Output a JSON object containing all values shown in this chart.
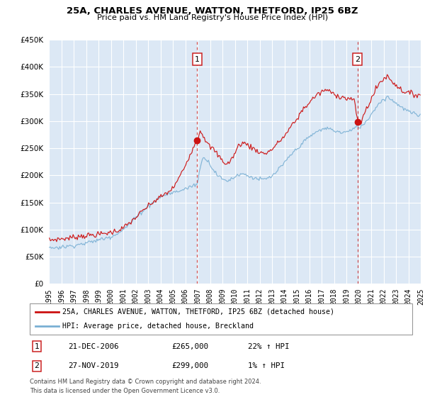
{
  "title": "25A, CHARLES AVENUE, WATTON, THETFORD, IP25 6BZ",
  "subtitle": "Price paid vs. HM Land Registry's House Price Index (HPI)",
  "legend_label_red": "25A, CHARLES AVENUE, WATTON, THETFORD, IP25 6BZ (detached house)",
  "legend_label_blue": "HPI: Average price, detached house, Breckland",
  "annotation1_label": "1",
  "annotation1_date": "21-DEC-2006",
  "annotation1_price": "£265,000",
  "annotation1_hpi": "22% ↑ HPI",
  "annotation2_label": "2",
  "annotation2_date": "27-NOV-2019",
  "annotation2_price": "£299,000",
  "annotation2_hpi": "1% ↑ HPI",
  "footer1": "Contains HM Land Registry data © Crown copyright and database right 2024.",
  "footer2": "This data is licensed under the Open Government Licence v3.0.",
  "ylim": [
    0,
    450000
  ],
  "yticks": [
    0,
    50000,
    100000,
    150000,
    200000,
    250000,
    300000,
    350000,
    400000,
    450000
  ],
  "background_color": "#ffffff",
  "plot_bg_color": "#dce8f5",
  "grid_color": "#ffffff",
  "red_color": "#cc1111",
  "blue_color": "#7ab0d4",
  "vline_color": "#cc3333",
  "marker1_x": 2006.97,
  "marker1_y": 265000,
  "marker2_x": 2019.9,
  "marker2_y": 299000,
  "xmin": 1995,
  "xmax": 2025
}
